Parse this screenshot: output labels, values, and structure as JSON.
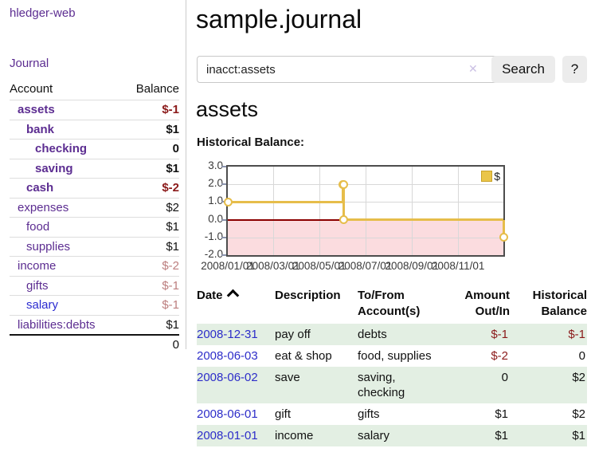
{
  "colors": {
    "link_purple": "#5c2d91",
    "link_blue": "#2b2bd0",
    "negative_strong": "#8b1a1a",
    "negative_faded": "#bc7e7e",
    "row_highlight_green": "#e3efe3",
    "chart_line_gold": "#e6bd4a",
    "chart_negative_region_pink": "#fbdcdf",
    "chart_zero_line_red": "#8b0000"
  },
  "icons": {
    "clear": "✕",
    "sort": "chevron-up",
    "legend_swatch": "yellow-square"
  },
  "sidebar": {
    "app_title": "hledger-web",
    "journal_link": "Journal",
    "accounts_table": {
      "headers": {
        "account": "Account",
        "balance": "Balance"
      },
      "rows": [
        {
          "account": "assets",
          "indent": 0,
          "emphasized": true,
          "balance": "$-1"
        },
        {
          "account": "bank",
          "indent": 1,
          "emphasized": true,
          "balance": "$1"
        },
        {
          "account": "checking",
          "indent": 2,
          "emphasized": true,
          "balance": "0"
        },
        {
          "account": "saving",
          "indent": 2,
          "emphasized": true,
          "balance": "$1"
        },
        {
          "account": "cash",
          "indent": 1,
          "emphasized": true,
          "balance": "$-2"
        },
        {
          "account": "expenses",
          "indent": 0,
          "emphasized": false,
          "balance": "$2"
        },
        {
          "account": "food",
          "indent": 1,
          "emphasized": false,
          "balance": "$1"
        },
        {
          "account": "supplies",
          "indent": 1,
          "emphasized": false,
          "balance": "$1"
        },
        {
          "account": "income",
          "indent": 0,
          "emphasized": false,
          "balance": "$-2"
        },
        {
          "account": "gifts",
          "indent": 1,
          "emphasized": false,
          "balance": "$-1"
        },
        {
          "account": "salary",
          "indent": 1,
          "emphasized": false,
          "balance": "$-1",
          "blue_link": true
        },
        {
          "account": "liabilities:debts",
          "indent": 0,
          "emphasized": false,
          "balance": "$1"
        }
      ],
      "total": "0"
    }
  },
  "main": {
    "title": "sample.journal",
    "search": {
      "value": "inacct:assets",
      "search_button": "Search",
      "help_button": "?"
    },
    "account_heading": "assets",
    "chart_label": "Historical Balance:"
  },
  "chart_data": {
    "type": "line",
    "step": true,
    "title": "Historical Balance:",
    "series": [
      {
        "name": "$",
        "points": [
          [
            "2008-01-01",
            1.0
          ],
          [
            "2008-06-01",
            2.0
          ],
          [
            "2008-06-02",
            2.0
          ],
          [
            "2008-06-03",
            0.0
          ],
          [
            "2008-12-31",
            -1.0
          ]
        ]
      }
    ],
    "x_range": [
      "2008-01-01",
      "2008-12-31"
    ],
    "ylim": [
      -2.0,
      3.0
    ],
    "y_ticks": [
      3.0,
      2.0,
      1.0,
      0.0,
      -1.0,
      -2.0
    ],
    "y_tick_labels": [
      "3.0",
      "2.0",
      "1.0",
      "0.0",
      "-1.0",
      "-2.0"
    ],
    "x_ticks": [
      "2008/01/01",
      "2008/03/01",
      "2008/05/01",
      "2008/07/01",
      "2008/09/01",
      "2008/11/01"
    ],
    "legend": {
      "label": "$",
      "position": "top-right"
    },
    "grid": true,
    "negative_region_shaded": true
  },
  "register_table": {
    "headers": {
      "date": "Date",
      "description": "Description",
      "accounts": "To/From\nAccount(s)",
      "amount": "Amount\nOut/In",
      "balance": "Historical\nBalance"
    },
    "rows": [
      {
        "date": "2008-12-31",
        "description": "pay off",
        "accounts": "debts",
        "amount": "$-1",
        "balance": "$-1"
      },
      {
        "date": "2008-06-03",
        "description": "eat & shop",
        "accounts": "food, supplies",
        "amount": "$-2",
        "balance": "0"
      },
      {
        "date": "2008-06-02",
        "description": "save",
        "accounts": "saving, checking",
        "amount": "0",
        "balance": "$2"
      },
      {
        "date": "2008-06-01",
        "description": "gift",
        "accounts": "gifts",
        "amount": "$1",
        "balance": "$2"
      },
      {
        "date": "2008-01-01",
        "description": "income",
        "accounts": "salary",
        "amount": "$1",
        "balance": "$1"
      }
    ]
  }
}
